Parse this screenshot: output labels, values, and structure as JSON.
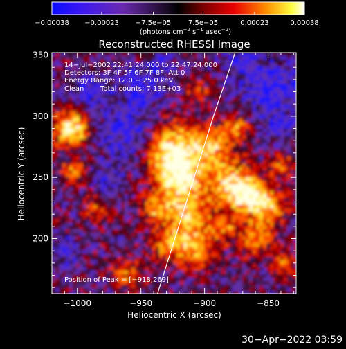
{
  "chart_data": {
    "type": "heatmap",
    "title": "Reconstructed RHESSI Image",
    "xlabel": "Heliocentric X (arcsec)",
    "ylabel": "Heliocentric Y (arcsec)",
    "xlim": [
      -1020,
      -828
    ],
    "ylim": [
      155,
      352
    ],
    "x_ticks": [
      -1000,
      -950,
      -900,
      -850
    ],
    "y_ticks": [
      200,
      250,
      300,
      350
    ],
    "x_tick_labels": [
      "−1000",
      "−950",
      "−900",
      "−850"
    ],
    "y_tick_labels": [
      "200",
      "250",
      "300",
      "350"
    ],
    "colorbar": {
      "ticks": [
        -0.00038,
        -0.00023,
        -7.5e-05,
        7.5e-05,
        0.00023,
        0.00038
      ],
      "tick_labels": [
        "−0.00038",
        "−0.00023",
        "−7.5e−05",
        "7.5e−05",
        "0.00023",
        "0.00038"
      ],
      "range": [
        -0.00038,
        0.00038
      ]
    },
    "annotations": [
      "14−Jul−2002 22:41:24.000 to 22:47:24.000",
      "Detectors: 3F 4F 5F 6F 7F 8F, Att 0",
      "Energy Range: 12.0 − 25.0 keV",
      "Clean",
      "Total counts: 7.13E+03",
      "Position of Peak = [−918,269]"
    ],
    "limb_line": [
      [
        -937,
        155
      ],
      [
        -893,
        300
      ],
      [
        -876,
        352
      ]
    ],
    "peak_position": [
      -918,
      269
    ]
  },
  "colorbar_unit": {
    "prefix": "(photons cm",
    "sup1": "−2",
    "mid1": " s",
    "sup2": "−1",
    "mid2": " asec",
    "sup3": "−2",
    "suffix": ")"
  },
  "timestamp": "30−Apr−2022 03:59",
  "colors": {
    "background": "#000000",
    "axes": "#ffffff",
    "limb_line": "#ffffff"
  }
}
